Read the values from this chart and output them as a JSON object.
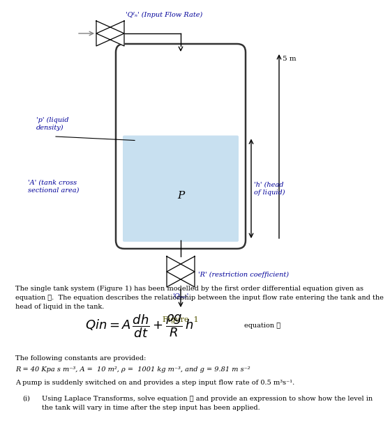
{
  "bg_color": "#ffffff",
  "fig_width": 5.09,
  "fig_height": 6.03,
  "tank_fill_color": "#c8e0f0",
  "tank_edge_color": "#333333",
  "labels": {
    "rho": "'p' (liquid\ndensity)",
    "A": "'A' (tank cross\nsectional area)",
    "Qin_label": "'Qᴵₙ' (Input Flow Rate)",
    "h": "'h' (head\nof liquid)",
    "R": "'R' (restriction coefficient)",
    "Qout": "'Qₒᵤₜ'",
    "figure1": "Figure  1",
    "P": "P"
  },
  "body_text1": "The single tank system (Figure 1) has been modelled by the first order differential equation given as",
  "body_text2": "equation ①.  The equation describes the relationship between the input flow rate entering the tank and the",
  "body_text3": "head of liquid in the tank.",
  "equation_label": "equation ①",
  "constants_header": "The following constants are provided:",
  "constants_line": "R = 40 Kpa s m⁻³, A =  10 m², ρ =  1001 kg m⁻³, and g = 9.81 m s⁻²",
  "pump_text": "A pump is suddenly switched on and provides a step input flow rate of 0.5 m³s⁻¹.",
  "question_i": "(i)",
  "question_text1": "Using Laplace Transforms, solve equation ① and provide an expression to show how the level in",
  "question_text2": "the tank will vary in time after the step input has been applied.",
  "dim_5m": "5 m"
}
